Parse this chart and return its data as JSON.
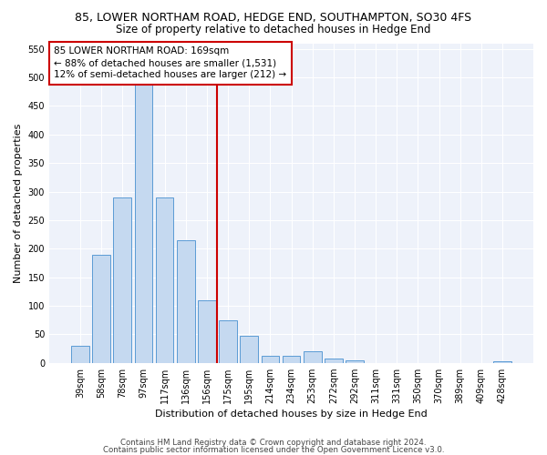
{
  "title": "85, LOWER NORTHAM ROAD, HEDGE END, SOUTHAMPTON, SO30 4FS",
  "subtitle": "Size of property relative to detached houses in Hedge End",
  "xlabel": "Distribution of detached houses by size in Hedge End",
  "ylabel": "Number of detached properties",
  "categories": [
    "39sqm",
    "58sqm",
    "78sqm",
    "97sqm",
    "117sqm",
    "136sqm",
    "156sqm",
    "175sqm",
    "195sqm",
    "214sqm",
    "234sqm",
    "253sqm",
    "272sqm",
    "292sqm",
    "311sqm",
    "331sqm",
    "350sqm",
    "370sqm",
    "389sqm",
    "409sqm",
    "428sqm"
  ],
  "values": [
    30,
    190,
    290,
    510,
    290,
    215,
    110,
    75,
    47,
    13,
    13,
    20,
    8,
    5,
    0,
    0,
    0,
    0,
    0,
    0,
    2
  ],
  "bar_color": "#c5d9f0",
  "bar_edge_color": "#5b9bd5",
  "vline_color": "#cc0000",
  "vline_x": 7,
  "annotation_text": "85 LOWER NORTHAM ROAD: 169sqm\n← 88% of detached houses are smaller (1,531)\n12% of semi-detached houses are larger (212) →",
  "annotation_box_color": "#ffffff",
  "annotation_box_edge_color": "#cc0000",
  "ylim": [
    0,
    560
  ],
  "yticks": [
    0,
    50,
    100,
    150,
    200,
    250,
    300,
    350,
    400,
    450,
    500,
    550
  ],
  "footer1": "Contains HM Land Registry data © Crown copyright and database right 2024.",
  "footer2": "Contains public sector information licensed under the Open Government Licence v3.0.",
  "bg_color": "#ffffff",
  "plot_bg_color": "#eef2fa",
  "title_fontsize": 9,
  "subtitle_fontsize": 8.5,
  "label_fontsize": 8,
  "tick_fontsize": 7,
  "annotation_fontsize": 7.5
}
